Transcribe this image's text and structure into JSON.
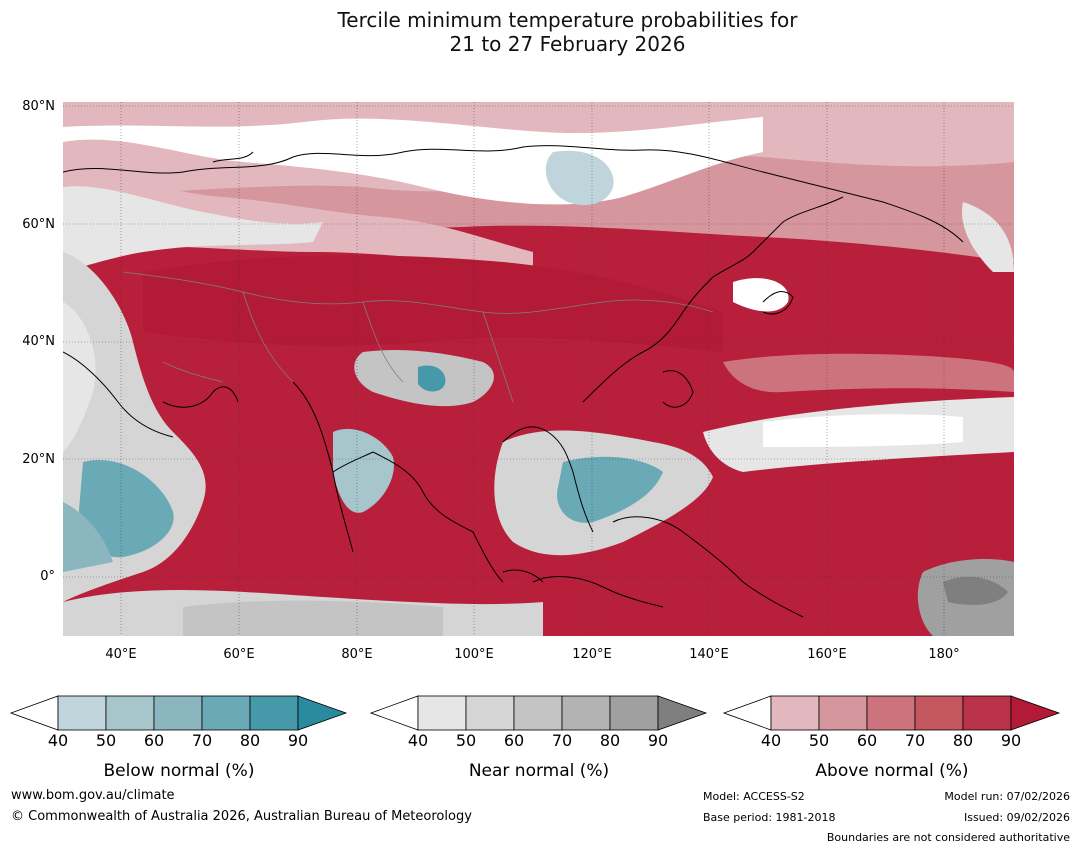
{
  "title": {
    "line1": "Tercile minimum temperature probabilities for",
    "line2": "21 to 27 February 2026"
  },
  "map": {
    "lat_labels": [
      "80°N",
      "60°N",
      "40°N",
      "20°N",
      "0°"
    ],
    "lon_labels": [
      "40°E",
      "60°E",
      "80°E",
      "100°E",
      "120°E",
      "140°E",
      "160°E",
      "180°"
    ],
    "region": "Asia"
  },
  "colorbars": [
    {
      "label": "Below normal (%)",
      "ticks": [
        "40",
        "50",
        "60",
        "70",
        "80",
        "90"
      ],
      "colors": [
        "#ffffff",
        "#c0d5db",
        "#a7c6cc",
        "#8bb5bf",
        "#6aaab6",
        "#4599a9",
        "#2a8a9e"
      ]
    },
    {
      "label": "Near normal (%)",
      "ticks": [
        "40",
        "50",
        "60",
        "70",
        "80",
        "90"
      ],
      "colors": [
        "#ffffff",
        "#e6e6e6",
        "#d5d5d5",
        "#c4c4c4",
        "#b3b3b3",
        "#a0a0a0",
        "#7f7f7f"
      ]
    },
    {
      "label": "Above normal (%)",
      "ticks": [
        "40",
        "50",
        "60",
        "70",
        "80",
        "90"
      ],
      "colors": [
        "#ffffff",
        "#e2b7be",
        "#d6969e",
        "#cd737d",
        "#c4565f",
        "#b93247",
        "#b21a36"
      ]
    }
  ],
  "footer": {
    "url": "www.bom.gov.au/climate",
    "copyright": "© Commonwealth of Australia 2026, Australian Bureau of Meteorology",
    "model": "Model: ACCESS-S2",
    "base_period": "Base period: 1981-2018",
    "model_run": "Model run: 07/02/2026",
    "issued": "Issued: 09/02/2026",
    "disclaimer": "Boundaries are not considered authoritative"
  }
}
